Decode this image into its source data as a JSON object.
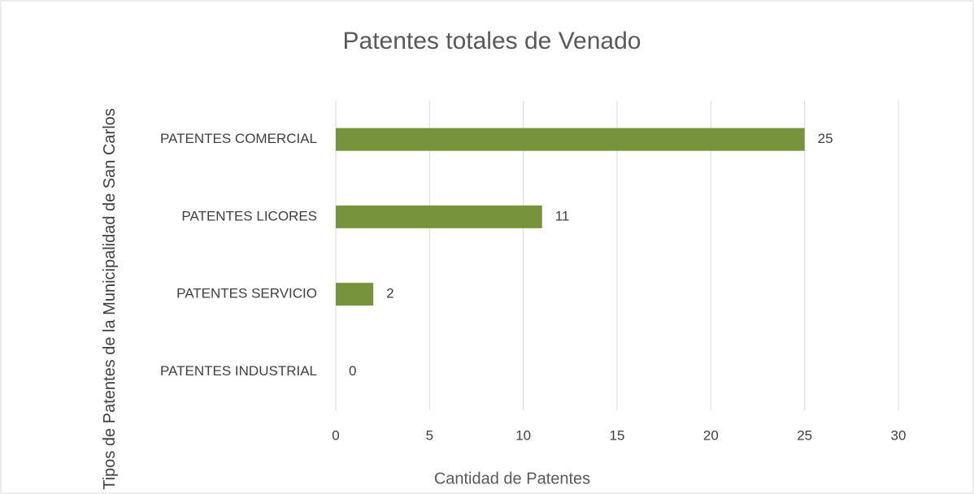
{
  "chart_data": {
    "type": "bar",
    "orientation": "horizontal",
    "title": "Patentes totales de Venado",
    "xlabel": "Cantidad de Patentes",
    "ylabel": "Tipos de Patentes de la Municipalidad de San Carlos",
    "categories": [
      "PATENTES COMERCIAL",
      "PATENTES LICORES",
      "PATENTES SERVICIO",
      "PATENTES INDUSTRIAL"
    ],
    "values": [
      25,
      11,
      2,
      0
    ],
    "color": "#77933c",
    "xlim": [
      0,
      30
    ],
    "xticks": [
      0,
      5,
      10,
      15,
      20,
      25,
      30
    ],
    "grid": true
  }
}
